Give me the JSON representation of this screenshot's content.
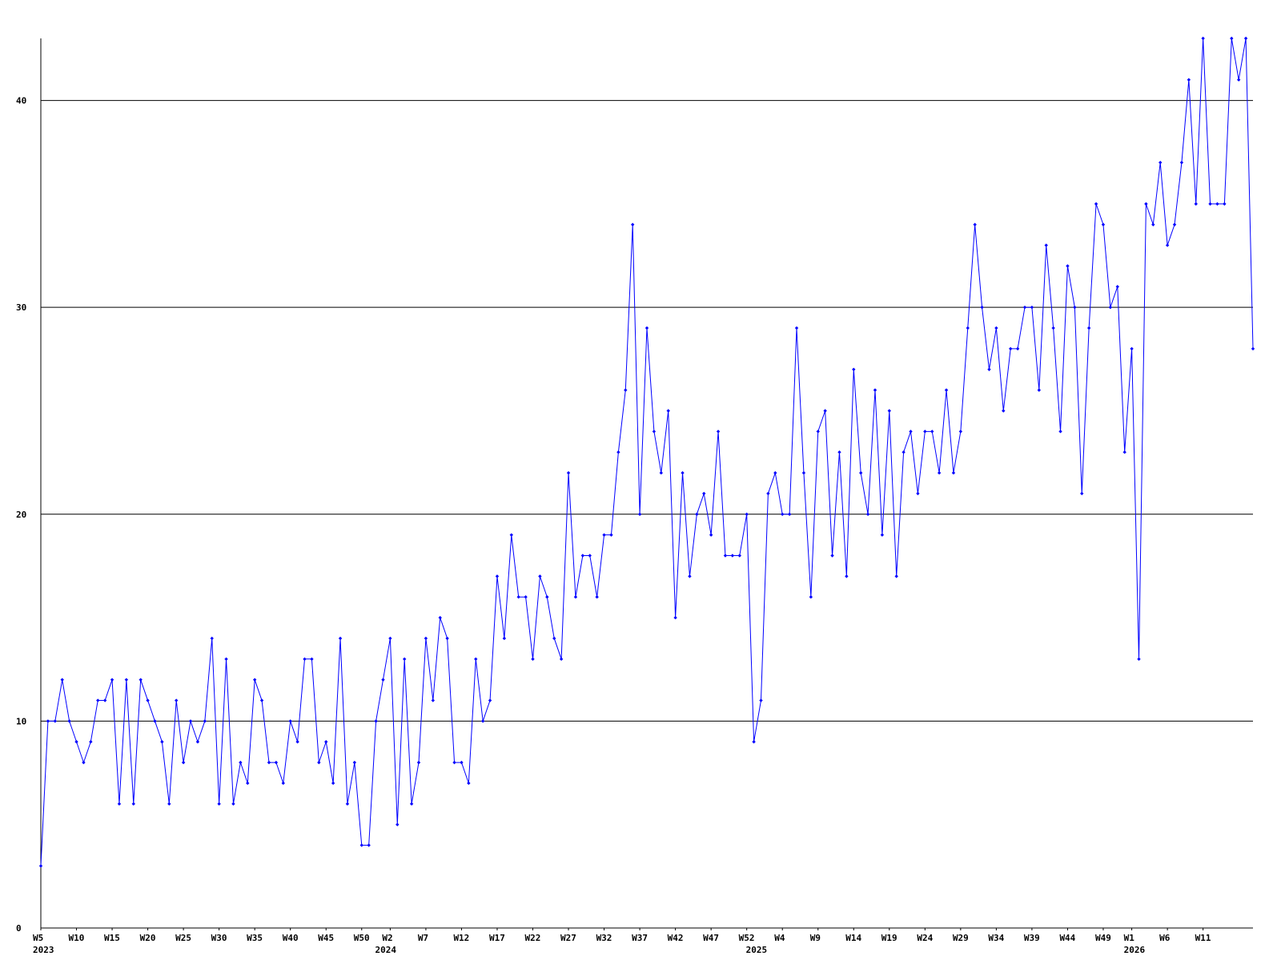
{
  "chart_data": {
    "type": "line",
    "title": "",
    "xlabel": "",
    "ylabel": "",
    "ylim": [
      0,
      43
    ],
    "y_ticks": [
      0,
      10,
      20,
      30,
      40
    ],
    "grid": true,
    "x_ticks": [
      {
        "label": "W5",
        "index": 0
      },
      {
        "label": "W10",
        "index": 5
      },
      {
        "label": "W15",
        "index": 10
      },
      {
        "label": "W20",
        "index": 15
      },
      {
        "label": "W25",
        "index": 20
      },
      {
        "label": "W30",
        "index": 25
      },
      {
        "label": "W35",
        "index": 30
      },
      {
        "label": "W40",
        "index": 35
      },
      {
        "label": "W45",
        "index": 40
      },
      {
        "label": "W50",
        "index": 45
      },
      {
        "label": "W2",
        "index": 49
      },
      {
        "label": "W7",
        "index": 54
      },
      {
        "label": "W12",
        "index": 59
      },
      {
        "label": "W17",
        "index": 64
      },
      {
        "label": "W22",
        "index": 69
      },
      {
        "label": "W27",
        "index": 74
      },
      {
        "label": "W32",
        "index": 79
      },
      {
        "label": "W37",
        "index": 84
      },
      {
        "label": "W42",
        "index": 89
      },
      {
        "label": "W47",
        "index": 94
      },
      {
        "label": "W52",
        "index": 99
      },
      {
        "label": "W4",
        "index": 104
      },
      {
        "label": "W9",
        "index": 109
      },
      {
        "label": "W14",
        "index": 114
      },
      {
        "label": "W19",
        "index": 119
      },
      {
        "label": "W24",
        "index": 124
      },
      {
        "label": "W29",
        "index": 129
      },
      {
        "label": "W34",
        "index": 134
      },
      {
        "label": "W39",
        "index": 139
      },
      {
        "label": "W44",
        "index": 144
      },
      {
        "label": "W49",
        "index": 149
      },
      {
        "label": "W1",
        "index": 153
      },
      {
        "label": "W6",
        "index": 158
      },
      {
        "label": "W11",
        "index": 163
      }
    ],
    "year_labels": [
      {
        "label": "2023",
        "index": 0
      },
      {
        "label": "2024",
        "index": 48
      },
      {
        "label": "2025",
        "index": 100
      },
      {
        "label": "2026",
        "index": 153
      }
    ],
    "colors": {
      "line": "#0000ff",
      "grid": "#000000",
      "axis": "#000000"
    },
    "series": [
      {
        "values": [
          3,
          10,
          10,
          12,
          10,
          9,
          8,
          9,
          11,
          11,
          12,
          6,
          12,
          6,
          12,
          11,
          10,
          9,
          6,
          11,
          8,
          10,
          9,
          10,
          14,
          6,
          13,
          6,
          8,
          7,
          12,
          11,
          8,
          8,
          7,
          10,
          9,
          13,
          13,
          8,
          9,
          7,
          14,
          6,
          8,
          4,
          4,
          10,
          12,
          14,
          5,
          13,
          6,
          8,
          14,
          11,
          15,
          14,
          8,
          8,
          7,
          13,
          10,
          11,
          17,
          14,
          19,
          16,
          16,
          13,
          17,
          16,
          14,
          13,
          22,
          16,
          18,
          18,
          16,
          19,
          19,
          23,
          26,
          34,
          20,
          29,
          24,
          22,
          25,
          15,
          22,
          17,
          20,
          21,
          19,
          24,
          18,
          18,
          18,
          20,
          9,
          11,
          21,
          22,
          20,
          20,
          29,
          22,
          16,
          24,
          25,
          18,
          23,
          17,
          27,
          22,
          20,
          26,
          19,
          25,
          17,
          23,
          24,
          21,
          24,
          24,
          22,
          26,
          22,
          24,
          29,
          34,
          30,
          27,
          29,
          25,
          28,
          28,
          30,
          30,
          26,
          33,
          29,
          24,
          32,
          30,
          21,
          29,
          35,
          34,
          30,
          31,
          23,
          28,
          13,
          35,
          34,
          37,
          33,
          34,
          37,
          41,
          35,
          43,
          35,
          35,
          35,
          43,
          41,
          43,
          28
        ]
      }
    ]
  }
}
